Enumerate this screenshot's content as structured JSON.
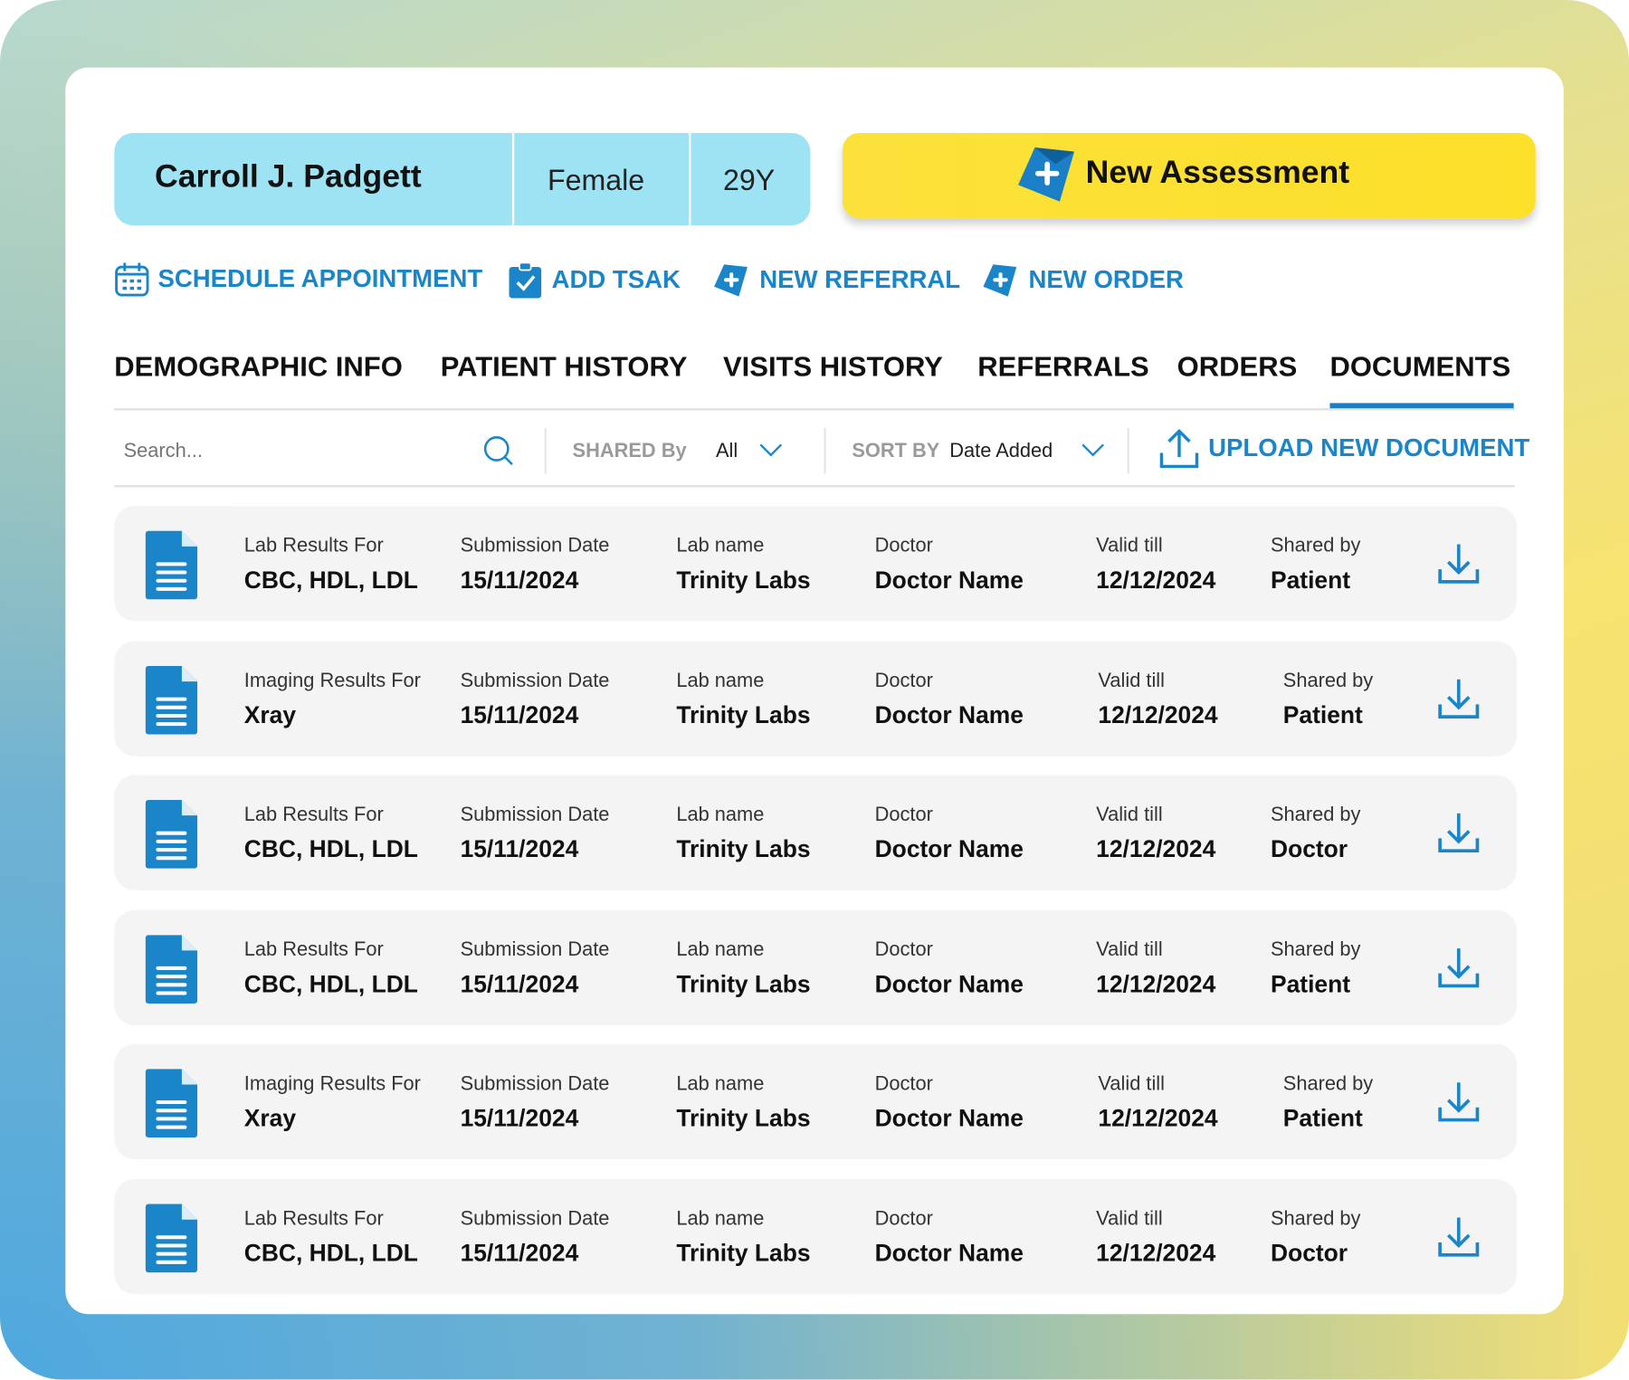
{
  "patient": {
    "name": "Carroll J. Padgett",
    "gender": "Female",
    "age": "29Y"
  },
  "new_assessment": {
    "label": "New Assessment",
    "icon": "plus-tag-icon"
  },
  "colors": {
    "accent": "#1a86c9",
    "pill": "#9ee3f3",
    "assessment": "#fde02e",
    "row_bg": "#f4f4f4"
  },
  "actions": [
    {
      "label": "SCHEDULE APPOINTMENT",
      "icon": "calendar-icon"
    },
    {
      "label": "ADD TSAK",
      "icon": "clipboard-check-icon"
    },
    {
      "label": "NEW REFERRAL",
      "icon": "plus-tag-icon"
    },
    {
      "label": "NEW ORDER",
      "icon": "plus-tag-icon"
    }
  ],
  "tabs": [
    {
      "label": "DEMOGRAPHIC INFO"
    },
    {
      "label": "PATIENT HISTORY"
    },
    {
      "label": "VISITS HISTORY"
    },
    {
      "label": "REFERRALS"
    },
    {
      "label": "ORDERS"
    },
    {
      "label": "DOCUMENTS",
      "active": true
    }
  ],
  "filters": {
    "search_placeholder": "Search...",
    "shared_by_label": "SHARED By",
    "shared_by_value": "All",
    "sort_by_label": "SORT BY",
    "sort_by_value": "Date Added",
    "upload_label": "UPLOAD NEW DOCUMENT"
  },
  "documents": [
    {
      "type_label": "Lab Results For",
      "type_value": "CBC, HDL, LDL",
      "sub_label": "Submission Date",
      "sub_value": "15/11/2024",
      "lab_label": "Lab name",
      "lab_value": "Trinity Labs",
      "doc_label": "Doctor",
      "doc_value": "Doctor Name",
      "valid_label": "Valid till",
      "valid_value": "12/12/2024",
      "shared_label": "Shared by",
      "shared_value": "Patient"
    },
    {
      "type_label": "Imaging Results For",
      "type_value": "Xray",
      "sub_label": "Submission Date",
      "sub_value": "15/11/2024",
      "lab_label": "Lab name",
      "lab_value": "Trinity Labs",
      "doc_label": "Doctor",
      "doc_value": "Doctor Name",
      "valid_label": "Valid till",
      "valid_value": "12/12/2024",
      "shared_label": "Shared by",
      "shared_value": "Patient"
    },
    {
      "type_label": "Lab Results For",
      "type_value": "CBC, HDL, LDL",
      "sub_label": "Submission Date",
      "sub_value": "15/11/2024",
      "lab_label": "Lab name",
      "lab_value": "Trinity Labs",
      "doc_label": "Doctor",
      "doc_value": "Doctor Name",
      "valid_label": "Valid till",
      "valid_value": "12/12/2024",
      "shared_label": "Shared by",
      "shared_value": "Doctor"
    },
    {
      "type_label": "Lab Results For",
      "type_value": "CBC, HDL, LDL",
      "sub_label": "Submission Date",
      "sub_value": "15/11/2024",
      "lab_label": "Lab name",
      "lab_value": "Trinity Labs",
      "doc_label": "Doctor",
      "doc_value": "Doctor Name",
      "valid_label": "Valid till",
      "valid_value": "12/12/2024",
      "shared_label": "Shared by",
      "shared_value": "Patient"
    },
    {
      "type_label": "Imaging Results For",
      "type_value": "Xray",
      "sub_label": "Submission Date",
      "sub_value": "15/11/2024",
      "lab_label": "Lab name",
      "lab_value": "Trinity Labs",
      "doc_label": "Doctor",
      "doc_value": "Doctor Name",
      "valid_label": "Valid till",
      "valid_value": "12/12/2024",
      "shared_label": "Shared by",
      "shared_value": "Patient"
    },
    {
      "type_label": "Lab Results For",
      "type_value": "CBC, HDL, LDL",
      "sub_label": "Submission Date",
      "sub_value": "15/11/2024",
      "lab_label": "Lab name",
      "lab_value": "Trinity Labs",
      "doc_label": "Doctor",
      "doc_value": "Doctor Name",
      "valid_label": "Valid till",
      "valid_value": "12/12/2024",
      "shared_label": "Shared by",
      "shared_value": "Doctor"
    }
  ]
}
